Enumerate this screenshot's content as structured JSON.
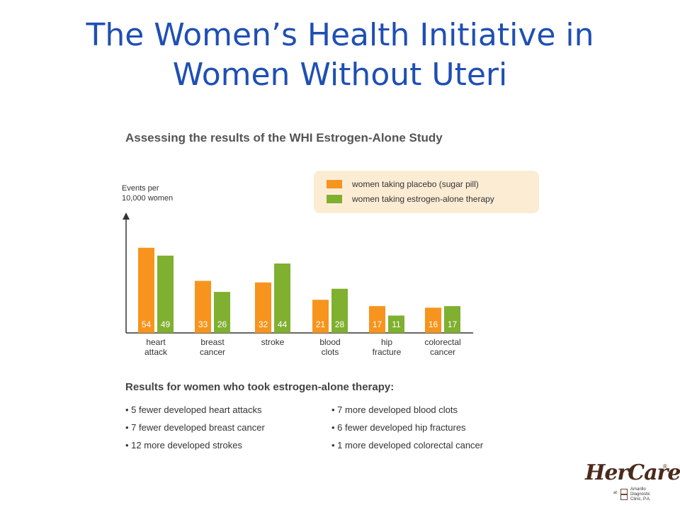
{
  "slide": {
    "title_line1": "The Women’s Health Initiative in",
    "title_line2": "Women Without Uteri"
  },
  "figure": {
    "heading": "Assessing the results of the WHI Estrogen-Alone Study",
    "ylabel_line1": "Events per",
    "ylabel_line2": "10,000 women"
  },
  "colors": {
    "placebo": "#f7941d",
    "estrogen": "#7fb030",
    "axis": "#333333"
  },
  "chart_data": {
    "type": "bar",
    "categories": [
      [
        "heart",
        "attack"
      ],
      [
        "breast",
        "cancer"
      ],
      [
        "stroke"
      ],
      [
        "blood",
        "clots"
      ],
      [
        "hip",
        "fracture"
      ],
      [
        "colorectal",
        "cancer"
      ]
    ],
    "series": [
      {
        "name": "women taking placebo (sugar pill)",
        "values": [
          54,
          33,
          32,
          21,
          17,
          16
        ],
        "color": "#f7941d"
      },
      {
        "name": "women taking estrogen-alone therapy",
        "values": [
          49,
          26,
          44,
          28,
          11,
          17
        ],
        "color": "#7fb030"
      }
    ],
    "ylabel": "Events per 10,000 women",
    "ylim": [
      0,
      75
    ],
    "grid": false,
    "legend": "top-right"
  },
  "results": {
    "heading": "Results for women who took estrogen-alone therapy:",
    "left": [
      "• 5 fewer developed heart attacks",
      "• 7 fewer developed breast cancer",
      "• 12 more developed strokes"
    ],
    "right": [
      "• 7 more developed blood clots",
      "• 6 fewer developed hip fractures",
      "• 1 more developed colorectal cancer"
    ]
  },
  "logo": {
    "brand": "HerCare",
    "reg": "®",
    "at": "at",
    "clinic_line1": "Amarillo",
    "clinic_line2": "Diagnostic",
    "clinic_line3": "Clinic, P.A."
  }
}
